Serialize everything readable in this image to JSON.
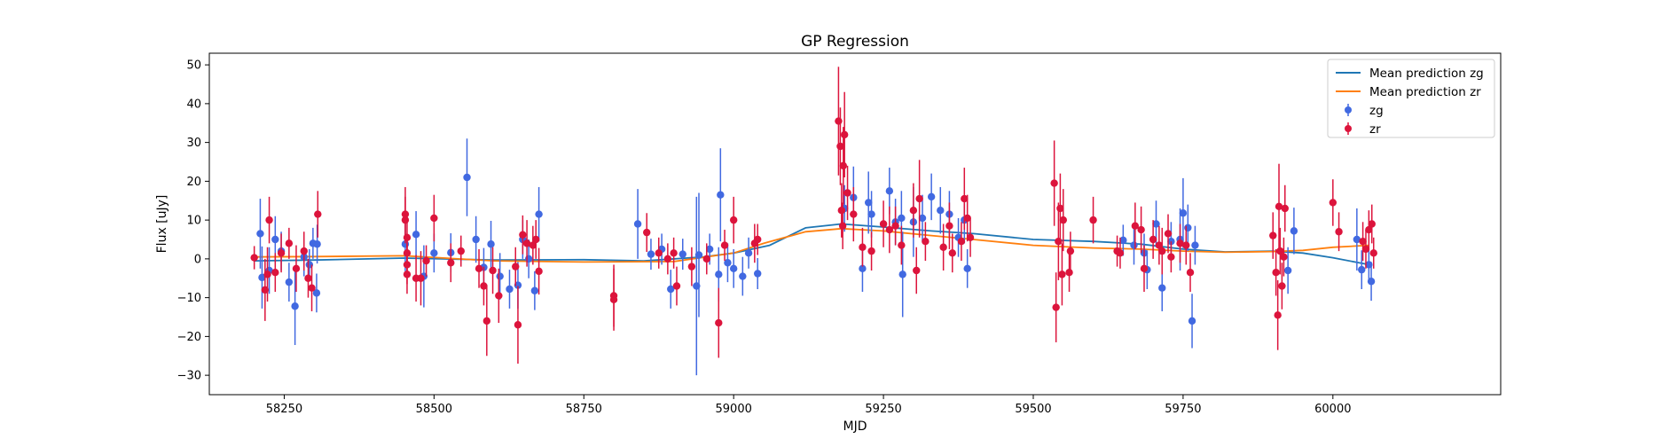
{
  "chart_data": {
    "type": "scatter",
    "title": "GP Regression",
    "xlabel": "MJD",
    "ylabel": "Flux [uJy]",
    "xlim": [
      58125,
      60280
    ],
    "ylim": [
      -35,
      53
    ],
    "xticks": [
      58250,
      58500,
      58750,
      59000,
      59250,
      59500,
      59750,
      60000
    ],
    "yticks": [
      -30,
      -20,
      -10,
      0,
      10,
      20,
      30,
      40,
      50
    ],
    "grid": false,
    "legend_position": "top-right",
    "legend": [
      "Mean prediction zg",
      "Mean prediction zr",
      "zg",
      "zr"
    ],
    "colors": {
      "zg_line": "#1f77b4",
      "zr_line": "#ff7f0e",
      "zg_points": "#4169e1",
      "zr_points": "#dc143c"
    },
    "series": [
      {
        "name": "Mean prediction zg",
        "kind": "line",
        "x": [
          58200,
          58300,
          58450,
          58600,
          58750,
          58850,
          58950,
          59000,
          59060,
          59120,
          59180,
          59250,
          59330,
          59400,
          59500,
          59600,
          59680,
          59750,
          59820,
          59900,
          59950,
          60000,
          60060
        ],
        "y": [
          -0.5,
          -0.3,
          0.2,
          -0.3,
          -0.2,
          -0.5,
          0.5,
          1.5,
          3.5,
          8.0,
          9.0,
          8.2,
          7.2,
          6.5,
          5.0,
          4.5,
          3.8,
          2.5,
          1.8,
          2.0,
          1.5,
          0.3,
          -1.5
        ]
      },
      {
        "name": "Mean prediction zr",
        "kind": "line",
        "x": [
          58200,
          58300,
          58450,
          58600,
          58750,
          58900,
          59000,
          59050,
          59120,
          59180,
          59250,
          59330,
          59400,
          59500,
          59600,
          59680,
          59750,
          59820,
          59900,
          59950,
          60000,
          60060
        ],
        "y": [
          0.5,
          0.6,
          0.8,
          -0.5,
          -0.8,
          -0.7,
          1.5,
          4.0,
          7.0,
          7.8,
          7.2,
          6.0,
          5.0,
          3.5,
          2.8,
          2.5,
          2.0,
          1.7,
          1.9,
          2.2,
          3.0,
          3.5
        ]
      },
      {
        "name": "zg",
        "kind": "errorbar",
        "points": [
          [
            58210,
            6.5,
            9
          ],
          [
            58213,
            -4.8,
            8
          ],
          [
            58225,
            -3,
            6
          ],
          [
            58235,
            5,
            6
          ],
          [
            58245,
            2,
            5
          ],
          [
            58258,
            -6,
            5
          ],
          [
            58268,
            -12.2,
            10
          ],
          [
            58283,
            0.5,
            5
          ],
          [
            58292,
            -1.5,
            4
          ],
          [
            58298,
            4,
            4
          ],
          [
            58304,
            -8.8,
            5
          ],
          [
            58305,
            3.8,
            5
          ],
          [
            58452,
            3.8,
            7
          ],
          [
            58470,
            6.3,
            6
          ],
          [
            58483,
            -4.5,
            8
          ],
          [
            58500,
            1.5,
            5
          ],
          [
            58528,
            1.6,
            5
          ],
          [
            58555,
            21,
            10
          ],
          [
            58570,
            5,
            6
          ],
          [
            58583,
            -2.2,
            5
          ],
          [
            58595,
            3.8,
            6
          ],
          [
            58610,
            -4.5,
            6
          ],
          [
            58626,
            -7.8,
            5
          ],
          [
            58640,
            -6.8,
            6
          ],
          [
            58648,
            5,
            5
          ],
          [
            58658,
            0,
            5
          ],
          [
            58668,
            -8.2,
            5
          ],
          [
            58675,
            11.5,
            7
          ],
          [
            58840,
            9,
            9
          ],
          [
            58862,
            1.2,
            4
          ],
          [
            58880,
            2.5,
            4
          ],
          [
            58895,
            -7.8,
            5
          ],
          [
            58915,
            1.2,
            4
          ],
          [
            58938,
            -7,
            23
          ],
          [
            58942,
            1,
            16
          ],
          [
            58960,
            2.5,
            4
          ],
          [
            58975,
            -4,
            7
          ],
          [
            58978,
            16.5,
            12
          ],
          [
            58990,
            -1,
            5
          ],
          [
            59000,
            -2.5,
            5
          ],
          [
            59015,
            -4.5,
            5
          ],
          [
            59025,
            1.5,
            4
          ],
          [
            59040,
            -3.8,
            4
          ],
          [
            59185,
            13,
            6
          ],
          [
            59200,
            15.8,
            8
          ],
          [
            59215,
            -2.5,
            6
          ],
          [
            59225,
            14.5,
            8
          ],
          [
            59230,
            11.5,
            6
          ],
          [
            59260,
            17.5,
            6
          ],
          [
            59270,
            9.5,
            6
          ],
          [
            59280,
            10.5,
            7
          ],
          [
            59282,
            -4,
            11
          ],
          [
            59300,
            9.5,
            9
          ],
          [
            59315,
            10.5,
            6
          ],
          [
            59330,
            16,
            6
          ],
          [
            59345,
            12.5,
            6
          ],
          [
            59360,
            11.5,
            6
          ],
          [
            59375,
            5.5,
            5
          ],
          [
            59385,
            10,
            6
          ],
          [
            59390,
            -2.5,
            5
          ],
          [
            59650,
            4.8,
            4
          ],
          [
            59668,
            3.5,
            5
          ],
          [
            59685,
            1.5,
            5
          ],
          [
            59690,
            -2.8,
            5
          ],
          [
            59705,
            9,
            6
          ],
          [
            59715,
            -7.5,
            6
          ],
          [
            59730,
            4.5,
            5
          ],
          [
            59745,
            5,
            8
          ],
          [
            59750,
            11.8,
            9
          ],
          [
            59758,
            8,
            6
          ],
          [
            59765,
            -16,
            7
          ],
          [
            59770,
            3.5,
            5
          ],
          [
            59925,
            -3,
            6
          ],
          [
            59935,
            7.2,
            6
          ],
          [
            60040,
            5,
            8
          ],
          [
            60048,
            -2.8,
            5
          ],
          [
            60060,
            -1.5,
            4
          ],
          [
            60064,
            -5.8,
            5
          ]
        ]
      },
      {
        "name": "zr",
        "kind": "errorbar",
        "points": [
          [
            58200,
            0.3,
            3
          ],
          [
            58218,
            -8,
            8
          ],
          [
            58222,
            -4,
            7
          ],
          [
            58225,
            10,
            6
          ],
          [
            58235,
            -3.5,
            5
          ],
          [
            58245,
            1.5,
            5
          ],
          [
            58258,
            4,
            4
          ],
          [
            58270,
            -2.5,
            6
          ],
          [
            58283,
            2,
            5
          ],
          [
            58290,
            -5,
            5
          ],
          [
            58296,
            -7.5,
            6
          ],
          [
            58306,
            11.5,
            6
          ],
          [
            58452,
            11.5,
            7
          ],
          [
            58452,
            10,
            6
          ],
          [
            58455,
            5.5,
            6
          ],
          [
            58455,
            1.5,
            5
          ],
          [
            58455,
            -1.5,
            5
          ],
          [
            58455,
            -4,
            5
          ],
          [
            58470,
            -5,
            6
          ],
          [
            58478,
            -5,
            7
          ],
          [
            58487,
            -0.5,
            4
          ],
          [
            58500,
            10.5,
            6
          ],
          [
            58528,
            -1,
            5
          ],
          [
            58545,
            2,
            4
          ],
          [
            58575,
            -2.5,
            5
          ],
          [
            58583,
            -7,
            5
          ],
          [
            58588,
            -16,
            9
          ],
          [
            58598,
            -3,
            6
          ],
          [
            58608,
            -9.5,
            7
          ],
          [
            58636,
            -2,
            5
          ],
          [
            58640,
            -17,
            10
          ],
          [
            58648,
            6.2,
            5
          ],
          [
            58655,
            4,
            6
          ],
          [
            58665,
            3.5,
            5
          ],
          [
            58670,
            5,
            5
          ],
          [
            58675,
            -3.2,
            6
          ],
          [
            58800,
            -9.5,
            8
          ],
          [
            58800,
            -10.5,
            8
          ],
          [
            58855,
            6.8,
            5
          ],
          [
            58875,
            1.5,
            4
          ],
          [
            58890,
            0,
            4
          ],
          [
            58900,
            1.5,
            4
          ],
          [
            58905,
            -7,
            5
          ],
          [
            58930,
            -2,
            5
          ],
          [
            58955,
            0,
            4
          ],
          [
            58975,
            -16.5,
            9
          ],
          [
            58985,
            3.5,
            4
          ],
          [
            59000,
            10,
            6
          ],
          [
            59035,
            4,
            5
          ],
          [
            59040,
            5,
            4
          ],
          [
            59175,
            35.5,
            14
          ],
          [
            59178,
            29,
            10
          ],
          [
            59180,
            12.5,
            7
          ],
          [
            59182,
            8.5,
            6
          ],
          [
            59183,
            24,
            10
          ],
          [
            59185,
            32,
            11
          ],
          [
            59190,
            17,
            7
          ],
          [
            59200,
            11.5,
            7
          ],
          [
            59215,
            3,
            5
          ],
          [
            59230,
            2,
            5
          ],
          [
            59250,
            9,
            6
          ],
          [
            59260,
            7.5,
            6
          ],
          [
            59270,
            8.5,
            5
          ],
          [
            59280,
            3.5,
            5
          ],
          [
            59300,
            12.5,
            7
          ],
          [
            59305,
            -3,
            6
          ],
          [
            59310,
            15.5,
            10
          ],
          [
            59320,
            4.5,
            5
          ],
          [
            59350,
            3,
            6
          ],
          [
            59360,
            8.5,
            6
          ],
          [
            59365,
            1.5,
            5
          ],
          [
            59380,
            4.5,
            5
          ],
          [
            59385,
            15.5,
            8
          ],
          [
            59390,
            10.5,
            6
          ],
          [
            59395,
            5.5,
            5
          ],
          [
            59535,
            19.5,
            11
          ],
          [
            59538,
            -12.5,
            9
          ],
          [
            59542,
            4.5,
            10
          ],
          [
            59545,
            13,
            9
          ],
          [
            59548,
            -4,
            8
          ],
          [
            59550,
            10,
            8
          ],
          [
            59560,
            -3.5,
            5
          ],
          [
            59562,
            2,
            5
          ],
          [
            59600,
            10,
            6
          ],
          [
            59640,
            2,
            4
          ],
          [
            59645,
            1.5,
            4
          ],
          [
            59670,
            8.5,
            6
          ],
          [
            59680,
            7.5,
            6
          ],
          [
            59685,
            -2.5,
            6
          ],
          [
            59700,
            5,
            5
          ],
          [
            59710,
            3.5,
            5
          ],
          [
            59715,
            2,
            6
          ],
          [
            59725,
            6.5,
            5
          ],
          [
            59730,
            0.5,
            4
          ],
          [
            59745,
            4,
            5
          ],
          [
            59755,
            3.5,
            5
          ],
          [
            59762,
            -3.5,
            5
          ],
          [
            59900,
            6,
            6
          ],
          [
            59905,
            -3.5,
            6
          ],
          [
            59908,
            -14.5,
            9
          ],
          [
            59910,
            13.5,
            11
          ],
          [
            59912,
            2,
            6
          ],
          [
            59915,
            -7,
            6
          ],
          [
            59918,
            0.5,
            5
          ],
          [
            59920,
            13,
            6
          ],
          [
            60000,
            14.5,
            6
          ],
          [
            60010,
            7,
            5
          ],
          [
            60050,
            4.5,
            5
          ],
          [
            60055,
            2.5,
            5
          ],
          [
            60060,
            7.5,
            5
          ],
          [
            60065,
            9,
            5
          ],
          [
            60068,
            1.5,
            4
          ]
        ]
      }
    ]
  }
}
